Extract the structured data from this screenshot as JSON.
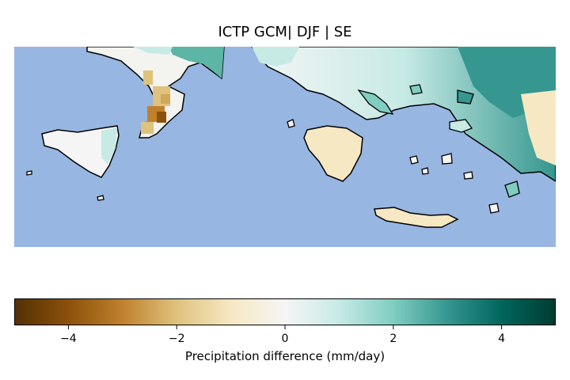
{
  "title": "ICTP GCM| DJF | SE",
  "colorbar": {
    "label": "Precipitation difference (mm/day)",
    "range": [
      -5,
      5
    ],
    "ticks": [
      {
        "value": -4,
        "label": "−4"
      },
      {
        "value": -2,
        "label": "−2"
      },
      {
        "value": 0,
        "label": "0"
      },
      {
        "value": 2,
        "label": "2"
      },
      {
        "value": 4,
        "label": "4"
      }
    ],
    "colormap": [
      "#543005",
      "#8c510a",
      "#bf812d",
      "#dfc27d",
      "#f6e8c3",
      "#f5f5f5",
      "#c7eae5",
      "#80cdc1",
      "#35978f",
      "#01665e",
      "#003c30"
    ]
  },
  "map": {
    "ocean_color": "#97b6e1",
    "coast_color": "#000000"
  }
}
